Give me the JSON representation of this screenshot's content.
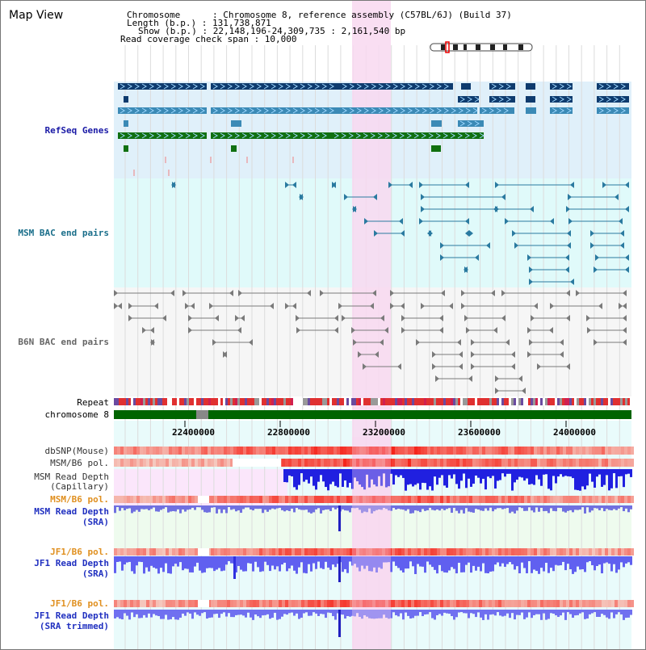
{
  "title": "Map View",
  "header": {
    "chromosome": "Chromosome      : Chromosome 8, reference assembly (C57BL/6J) (Build 37)",
    "length": "Length (b.p.) : 131,738,871",
    "show": "Show (b.p.) : 22,148,196-24,309,735 : 2,161,540 bp",
    "coverage": "Read coverage check span : 10,000"
  },
  "tracks": {
    "refseq": "RefSeq Genes",
    "msm_bac": "MSM BAC end pairs",
    "b6n_bac": "B6N BAC end pairs",
    "repeat": "Repeat",
    "chromosome": "chromosome 8",
    "dbsnp": "dbSNP(Mouse)",
    "msm_b6_pol": "MSM/B6 pol.",
    "msm_depth_cap_1": "MSM Read Depth",
    "msm_depth_cap_2": "(Capillary)",
    "msm_b6_pol_2": "MSM/B6 pol.",
    "msm_depth_sra_1": "MSM Read Depth",
    "msm_depth_sra_2": "(SRA)",
    "jf1_b6_pol": "JF1/B6 pol.",
    "jf1_depth_sra_1": "JF1 Read Depth",
    "jf1_depth_sra_2": "(SRA)",
    "jf1_b6_pol_2": "JF1/B6 pol.",
    "jf1_depth_trim_1": "JF1 Read Depth",
    "jf1_depth_trim_2": "(SRA trimmed)"
  },
  "axis": {
    "ticks": [
      "22400000",
      "22800000",
      "23200000",
      "23600000",
      "24000000"
    ]
  },
  "colors": {
    "refseq_bg": "#e0f0fa",
    "msm_bac_bg": "#e0fafa",
    "highlight": "#f8d8f0",
    "chromosome": "#006400",
    "msm_color": "#1e90ff",
    "jf1_color": "#3030ff"
  }
}
